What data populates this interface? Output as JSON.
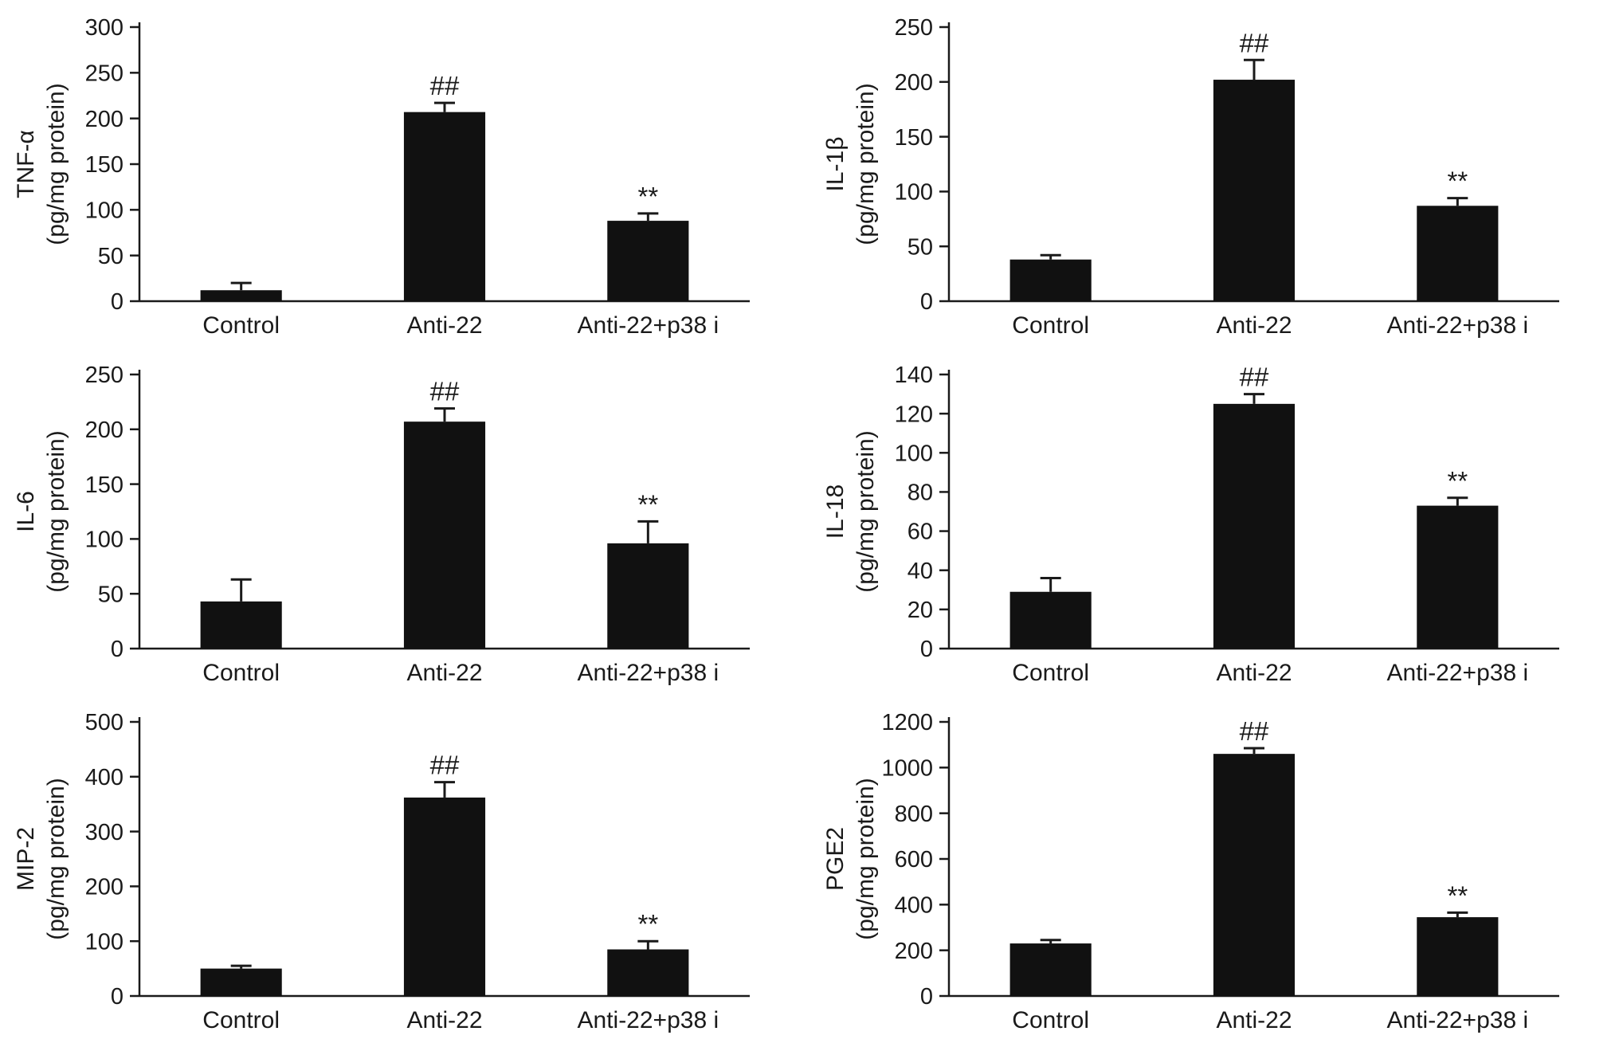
{
  "style": {
    "ink": "#1a1a1a",
    "bar_color": "#111111",
    "background": "#ffffff"
  },
  "chart_data": [
    {
      "type": "bar",
      "name": "tnf-alpha",
      "ylabel_line1": "TNF-α",
      "ylabel_line2": "(pg/mg protein)",
      "categories": [
        "Control",
        "Anti-22",
        "Anti-22+p38 i"
      ],
      "values": [
        12,
        207,
        88
      ],
      "errors": [
        8,
        10,
        8
      ],
      "annotations": [
        "",
        "##",
        "**"
      ],
      "ylim": [
        0,
        300
      ],
      "ytick_step": 50,
      "bar_color": "#111111"
    },
    {
      "type": "bar",
      "name": "il-1beta",
      "ylabel_line1": "IL-1β",
      "ylabel_line2": "(pg/mg protein)",
      "categories": [
        "Control",
        "Anti-22",
        "Anti-22+p38 i"
      ],
      "values": [
        38,
        202,
        87
      ],
      "errors": [
        4,
        18,
        7
      ],
      "annotations": [
        "",
        "##",
        "**"
      ],
      "ylim": [
        0,
        250
      ],
      "ytick_step": 50,
      "bar_color": "#111111"
    },
    {
      "type": "bar",
      "name": "il-6",
      "ylabel_line1": "IL-6",
      "ylabel_line2": "(pg/mg protein)",
      "categories": [
        "Control",
        "Anti-22",
        "Anti-22+p38 i"
      ],
      "values": [
        43,
        207,
        96
      ],
      "errors": [
        20,
        12,
        20
      ],
      "annotations": [
        "",
        "##",
        "**"
      ],
      "ylim": [
        0,
        250
      ],
      "ytick_step": 50,
      "bar_color": "#111111"
    },
    {
      "type": "bar",
      "name": "il-18",
      "ylabel_line1": "IL-18",
      "ylabel_line2": "(pg/mg protein)",
      "categories": [
        "Control",
        "Anti-22",
        "Anti-22+p38 i"
      ],
      "values": [
        29,
        125,
        73
      ],
      "errors": [
        7,
        5,
        4
      ],
      "annotations": [
        "",
        "##",
        "**"
      ],
      "ylim": [
        0,
        140
      ],
      "ytick_step": 20,
      "bar_color": "#111111"
    },
    {
      "type": "bar",
      "name": "mip-2",
      "ylabel_line1": "MIP-2",
      "ylabel_line2": "(pg/mg protein)",
      "categories": [
        "Control",
        "Anti-22",
        "Anti-22+p38 i"
      ],
      "values": [
        50,
        362,
        85
      ],
      "errors": [
        5,
        28,
        15
      ],
      "annotations": [
        "",
        "##",
        "**"
      ],
      "ylim": [
        0,
        500
      ],
      "ytick_step": 100,
      "bar_color": "#111111"
    },
    {
      "type": "bar",
      "name": "pge2",
      "ylabel_line1": "PGE2",
      "ylabel_line2": "(pg/mg protein)",
      "categories": [
        "Control",
        "Anti-22",
        "Anti-22+p38 i"
      ],
      "values": [
        230,
        1060,
        345
      ],
      "errors": [
        15,
        25,
        20
      ],
      "annotations": [
        "",
        "##",
        "**"
      ],
      "ylim": [
        0,
        1200
      ],
      "ytick_step": 200,
      "bar_color": "#111111"
    }
  ]
}
